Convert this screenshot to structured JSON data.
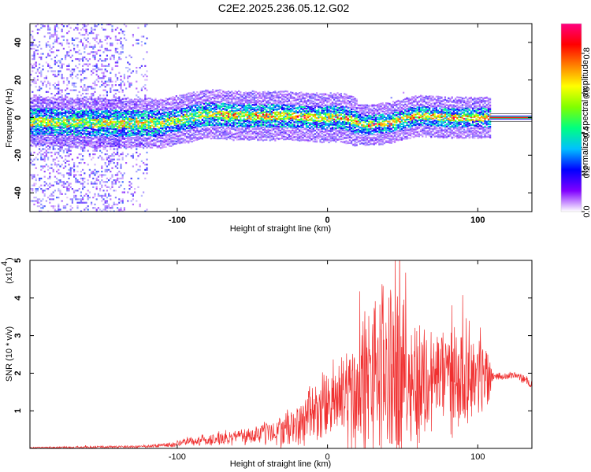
{
  "page": {
    "title": "C2E2.2025.236.05.12.G02"
  },
  "chart_data": [
    {
      "type": "heatmap",
      "name": "spectrogram",
      "title": "C2E2.2025.236.05.12.G02",
      "xlabel": "Height of straight line (km)",
      "ylabel": "Frequency (Hz)",
      "xlim": [
        -198,
        136
      ],
      "ylim": [
        -50,
        50
      ],
      "x_ticks": [
        -100,
        0,
        100
      ],
      "x_tick_labels": [
        "-100",
        "0",
        "100"
      ],
      "y_ticks": [
        -40,
        -20,
        0,
        20,
        40
      ],
      "y_tick_labels": [
        "-40",
        "-20",
        "0",
        "20",
        "40"
      ],
      "colorbar": {
        "label": "Normalized spectral amplitude",
        "range": [
          0,
          0.95
        ],
        "ticks": [
          0.0,
          0.2,
          0.4,
          0.6,
          0.8
        ],
        "tick_labels": [
          "0.0",
          "0.2",
          "0.4",
          "0.6",
          "0.8"
        ],
        "colors": [
          "#ffffff",
          "#8000ff",
          "#0000ff",
          "#00c0ff",
          "#00ff80",
          "#80ff00",
          "#ffff00",
          "#ff8000",
          "#ff0000",
          "#ff0080"
        ]
      },
      "ridge_center_hz": [
        {
          "x": -198,
          "y": -2
        },
        {
          "x": -150,
          "y": -3
        },
        {
          "x": -110,
          "y": -3
        },
        {
          "x": -80,
          "y": 2
        },
        {
          "x": -60,
          "y": 1
        },
        {
          "x": -30,
          "y": 1
        },
        {
          "x": -10,
          "y": 0
        },
        {
          "x": 10,
          "y": 0
        },
        {
          "x": 25,
          "y": -4
        },
        {
          "x": 40,
          "y": -3
        },
        {
          "x": 60,
          "y": 1
        },
        {
          "x": 80,
          "y": 0
        },
        {
          "x": 108,
          "y": 0
        },
        {
          "x": 136,
          "y": 0
        }
      ],
      "clean_tone": {
        "x_start": 108,
        "x_end": 136,
        "y": 0
      }
    },
    {
      "type": "line",
      "name": "snr",
      "title": "",
      "xlabel": "Height of straight line (km)",
      "ylabel": "SNR (10 * v/v)",
      "y_multiplier_label": "(x10",
      "y_multiplier_exp": "4",
      "xlim": [
        -198,
        136
      ],
      "ylim": [
        0,
        5
      ],
      "x_ticks": [
        -100,
        0,
        100
      ],
      "x_tick_labels": [
        "-100",
        "0",
        "100"
      ],
      "y_ticks": [
        1,
        2,
        3,
        4,
        5
      ],
      "y_tick_labels": [
        "1",
        "2",
        "3",
        "4",
        "5"
      ],
      "color": "#f03030",
      "envelope": {
        "x": [
          -198,
          -160,
          -120,
          -100,
          -90,
          -70,
          -50,
          -35,
          -20,
          -10,
          0,
          10,
          20,
          30,
          40,
          46,
          50,
          60,
          70,
          80,
          90,
          100,
          108,
          110,
          115,
          120,
          125,
          130,
          136
        ],
        "mean": [
          0.02,
          0.03,
          0.05,
          0.12,
          0.2,
          0.25,
          0.35,
          0.45,
          0.6,
          0.9,
          1.15,
          1.4,
          1.55,
          1.8,
          2.0,
          2.1,
          2.0,
          1.7,
          1.9,
          1.9,
          2.0,
          1.95,
          1.9,
          1.95,
          1.9,
          1.92,
          1.95,
          1.85,
          1.7
        ],
        "amp": [
          0.02,
          0.04,
          0.05,
          0.1,
          0.15,
          0.2,
          0.3,
          0.45,
          0.7,
          1.0,
          1.1,
          1.6,
          2.2,
          2.6,
          3.3,
          3.2,
          2.2,
          2.2,
          1.6,
          1.7,
          1.7,
          1.3,
          1.0,
          0.15,
          0.1,
          0.1,
          0.1,
          0.15,
          0.15
        ]
      }
    }
  ]
}
